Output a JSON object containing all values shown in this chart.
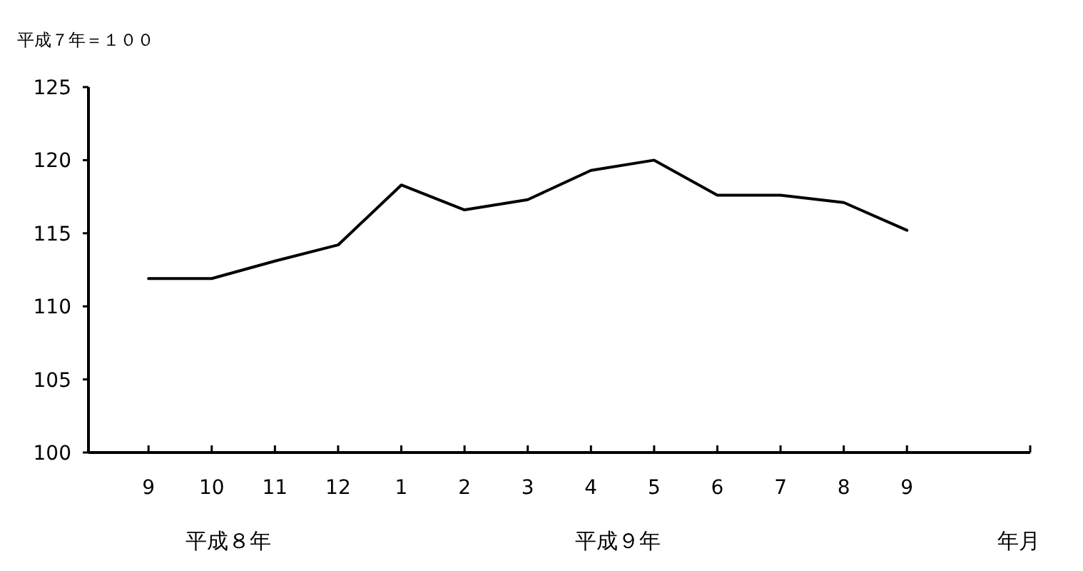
{
  "chart_data": {
    "type": "line",
    "ylabel": "平成７年＝１００",
    "xlabel": "年月",
    "categories": [
      "9",
      "10",
      "11",
      "12",
      "1",
      "2",
      "3",
      "4",
      "5",
      "6",
      "7",
      "8",
      "9"
    ],
    "series": [
      {
        "color": "#000000",
        "values": [
          111.9,
          111.9,
          113.1,
          114.2,
          118.3,
          116.6,
          117.3,
          119.3,
          120.0,
          117.6,
          117.6,
          117.1,
          115.2
        ]
      }
    ],
    "ylim": [
      100,
      125
    ],
    "yticks": [
      100,
      105,
      110,
      115,
      120,
      125
    ],
    "marker": "none",
    "line_style": "solid",
    "annotations": [
      "平成８年",
      "平成９年"
    ]
  }
}
